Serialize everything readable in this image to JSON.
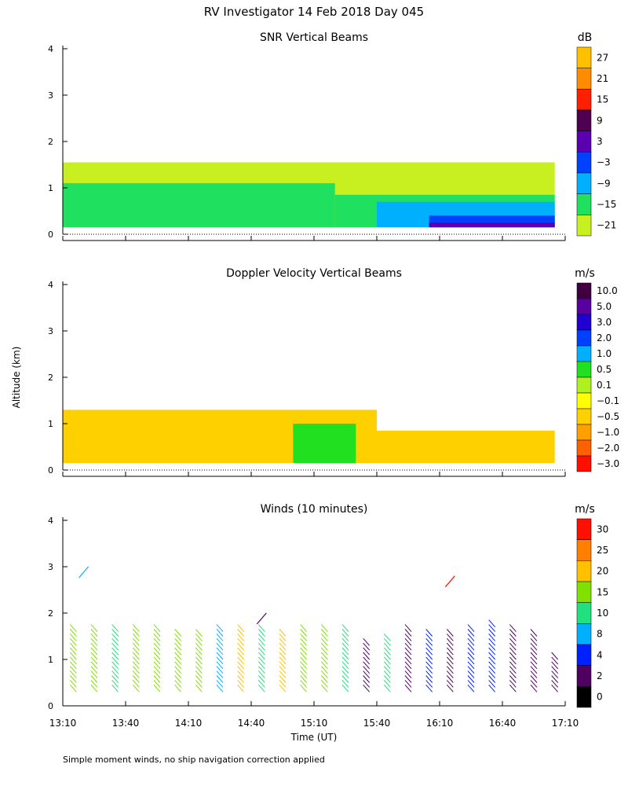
{
  "figure": {
    "title": "RV Investigator  14 Feb 2018 Day 045",
    "ylabel": "Altitude (km)",
    "xlabel": "Time (UT)",
    "footnote": "Simple moment winds, no ship navigation correction applied",
    "x_ticks": [
      "13:10",
      "13:40",
      "14:10",
      "14:40",
      "15:10",
      "15:40",
      "16:10",
      "16:40",
      "17:10"
    ]
  },
  "chart_data": [
    {
      "type": "heatmap",
      "title": "SNR Vertical Beams",
      "xlabel": "Time (UT)",
      "ylabel": "Altitude (km)",
      "xlim_minutes_after_1310": [
        0,
        240
      ],
      "ylim": [
        0,
        4
      ],
      "y_ticks": [
        "0",
        "1",
        "2",
        "3",
        "4"
      ],
      "colorbar": {
        "unit": "dB",
        "labels": [
          "27",
          "21",
          "15",
          "9",
          "3",
          "−3",
          "−9",
          "−15",
          "−21"
        ],
        "colors": [
          "#ffc000",
          "#ff8c00",
          "#ff2000",
          "#500050",
          "#5a00b0",
          "#0040ff",
          "#00b0ff",
          "#20e060",
          "#c8f020"
        ]
      },
      "regions": [
        {
          "t0": 0,
          "t1": 235,
          "z0": 0.15,
          "z1": 1.55,
          "class": "-21"
        },
        {
          "t0": 0,
          "t1": 130,
          "z0": 0.15,
          "z1": 1.1,
          "class": "-15"
        },
        {
          "t0": 130,
          "t1": 235,
          "z0": 0.15,
          "z1": 0.85,
          "class": "-15"
        },
        {
          "t0": 150,
          "t1": 235,
          "z0": 0.15,
          "z1": 0.7,
          "class": "-9"
        },
        {
          "t0": 175,
          "t1": 235,
          "z0": 0.15,
          "z1": 0.4,
          "class": "-3"
        },
        {
          "t0": 175,
          "t1": 235,
          "z0": 0.15,
          "z1": 0.25,
          "class": "3"
        }
      ]
    },
    {
      "type": "heatmap",
      "title": "Doppler Velocity Vertical Beams",
      "xlabel": "Time (UT)",
      "ylabel": "Altitude (km)",
      "xlim_minutes_after_1310": [
        0,
        240
      ],
      "ylim": [
        0,
        4
      ],
      "y_ticks": [
        "0",
        "1",
        "2",
        "3",
        "4"
      ],
      "colorbar": {
        "unit": "m/s",
        "labels": [
          "10.0",
          "5.0",
          "3.0",
          "2.0",
          "1.0",
          "0.5",
          "0.1",
          "−0.1",
          "−0.5",
          "−1.0",
          "−2.0",
          "−3.0"
        ],
        "colors": [
          "#400040",
          "#5a00a0",
          "#2000d0",
          "#0040ff",
          "#00b0ff",
          "#20e020",
          "#b0f020",
          "#ffff00",
          "#ffd000",
          "#ffa000",
          "#ff6000",
          "#ff1000"
        ]
      },
      "regions": [
        {
          "t0": 0,
          "t1": 150,
          "z0": 0.15,
          "z1": 1.3,
          "class": "-0.5"
        },
        {
          "t0": 150,
          "t1": 235,
          "z0": 0.15,
          "z1": 0.85,
          "class": "-0.5"
        },
        {
          "t0": 110,
          "t1": 140,
          "z0": 0.15,
          "z1": 1.0,
          "class": "0.5"
        }
      ]
    },
    {
      "type": "scatter",
      "title": "Winds (10 minutes)",
      "xlabel": "Time (UT)",
      "ylabel": "Altitude (km)",
      "xlim_minutes_after_1310": [
        0,
        240
      ],
      "ylim": [
        0,
        4
      ],
      "y_ticks": [
        "0",
        "1",
        "2",
        "3",
        "4"
      ],
      "colorbar": {
        "unit": "m/s",
        "labels": [
          "30",
          "25",
          "20",
          "15",
          "10",
          "8",
          "4",
          "2",
          "0"
        ],
        "colors": [
          "#ff1000",
          "#ff8000",
          "#ffc000",
          "#80e000",
          "#20e080",
          "#00b0ff",
          "#0020ff",
          "#500060",
          "#000000"
        ]
      },
      "barb_columns": [
        {
          "t": 5,
          "z_top": 1.6,
          "speed": 15
        },
        {
          "t": 15,
          "z_top": 1.6,
          "speed": 15
        },
        {
          "t": 25,
          "z_top": 1.6,
          "speed": 12
        },
        {
          "t": 35,
          "z_top": 1.6,
          "speed": 15
        },
        {
          "t": 45,
          "z_top": 1.6,
          "speed": 15
        },
        {
          "t": 55,
          "z_top": 1.5,
          "speed": 15
        },
        {
          "t": 65,
          "z_top": 1.5,
          "speed": 15
        },
        {
          "t": 75,
          "z_top": 1.6,
          "speed": 8
        },
        {
          "t": 85,
          "z_top": 1.6,
          "speed": 20
        },
        {
          "t": 95,
          "z_top": 1.6,
          "speed": 10
        },
        {
          "t": 105,
          "z_top": 1.5,
          "speed": 20
        },
        {
          "t": 115,
          "z_top": 1.6,
          "speed": 15
        },
        {
          "t": 125,
          "z_top": 1.6,
          "speed": 15
        },
        {
          "t": 135,
          "z_top": 1.6,
          "speed": 12
        },
        {
          "t": 145,
          "z_top": 1.3,
          "speed": 3
        },
        {
          "t": 155,
          "z_top": 1.4,
          "speed": 10
        },
        {
          "t": 165,
          "z_top": 1.6,
          "speed": 2
        },
        {
          "t": 175,
          "z_top": 1.5,
          "speed": 4
        },
        {
          "t": 185,
          "z_top": 1.5,
          "speed": 2
        },
        {
          "t": 195,
          "z_top": 1.6,
          "speed": 4
        },
        {
          "t": 205,
          "z_top": 1.7,
          "speed": 5
        },
        {
          "t": 215,
          "z_top": 1.6,
          "speed": 2
        },
        {
          "t": 225,
          "z_top": 1.5,
          "speed": 3
        },
        {
          "t": 235,
          "z_top": 1.0,
          "speed": 2
        }
      ],
      "isolated_barbs": [
        {
          "t": 10,
          "z": 2.9,
          "speed": 8
        },
        {
          "t": 185,
          "z": 2.7,
          "speed": 30
        },
        {
          "t": 95,
          "z": 1.9,
          "speed": 2
        }
      ]
    }
  ]
}
